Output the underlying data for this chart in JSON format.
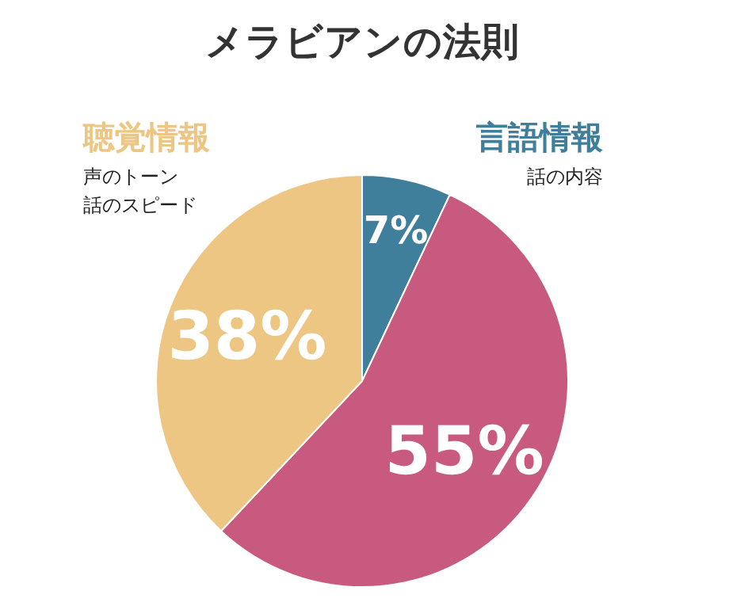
{
  "chart_data": {
    "type": "pie",
    "title": "メラビアンの法則",
    "categories": [
      "言語情報",
      null,
      "聴覚情報"
    ],
    "values": [
      7,
      55,
      38
    ],
    "colors": [
      "#3f7f9c",
      "#c85a80",
      "#ecc682"
    ],
    "value_labels": [
      "7%",
      "55%",
      "38%"
    ],
    "annotations": [
      "話の内容",
      "声のトーン",
      "話のスピード"
    ]
  }
}
